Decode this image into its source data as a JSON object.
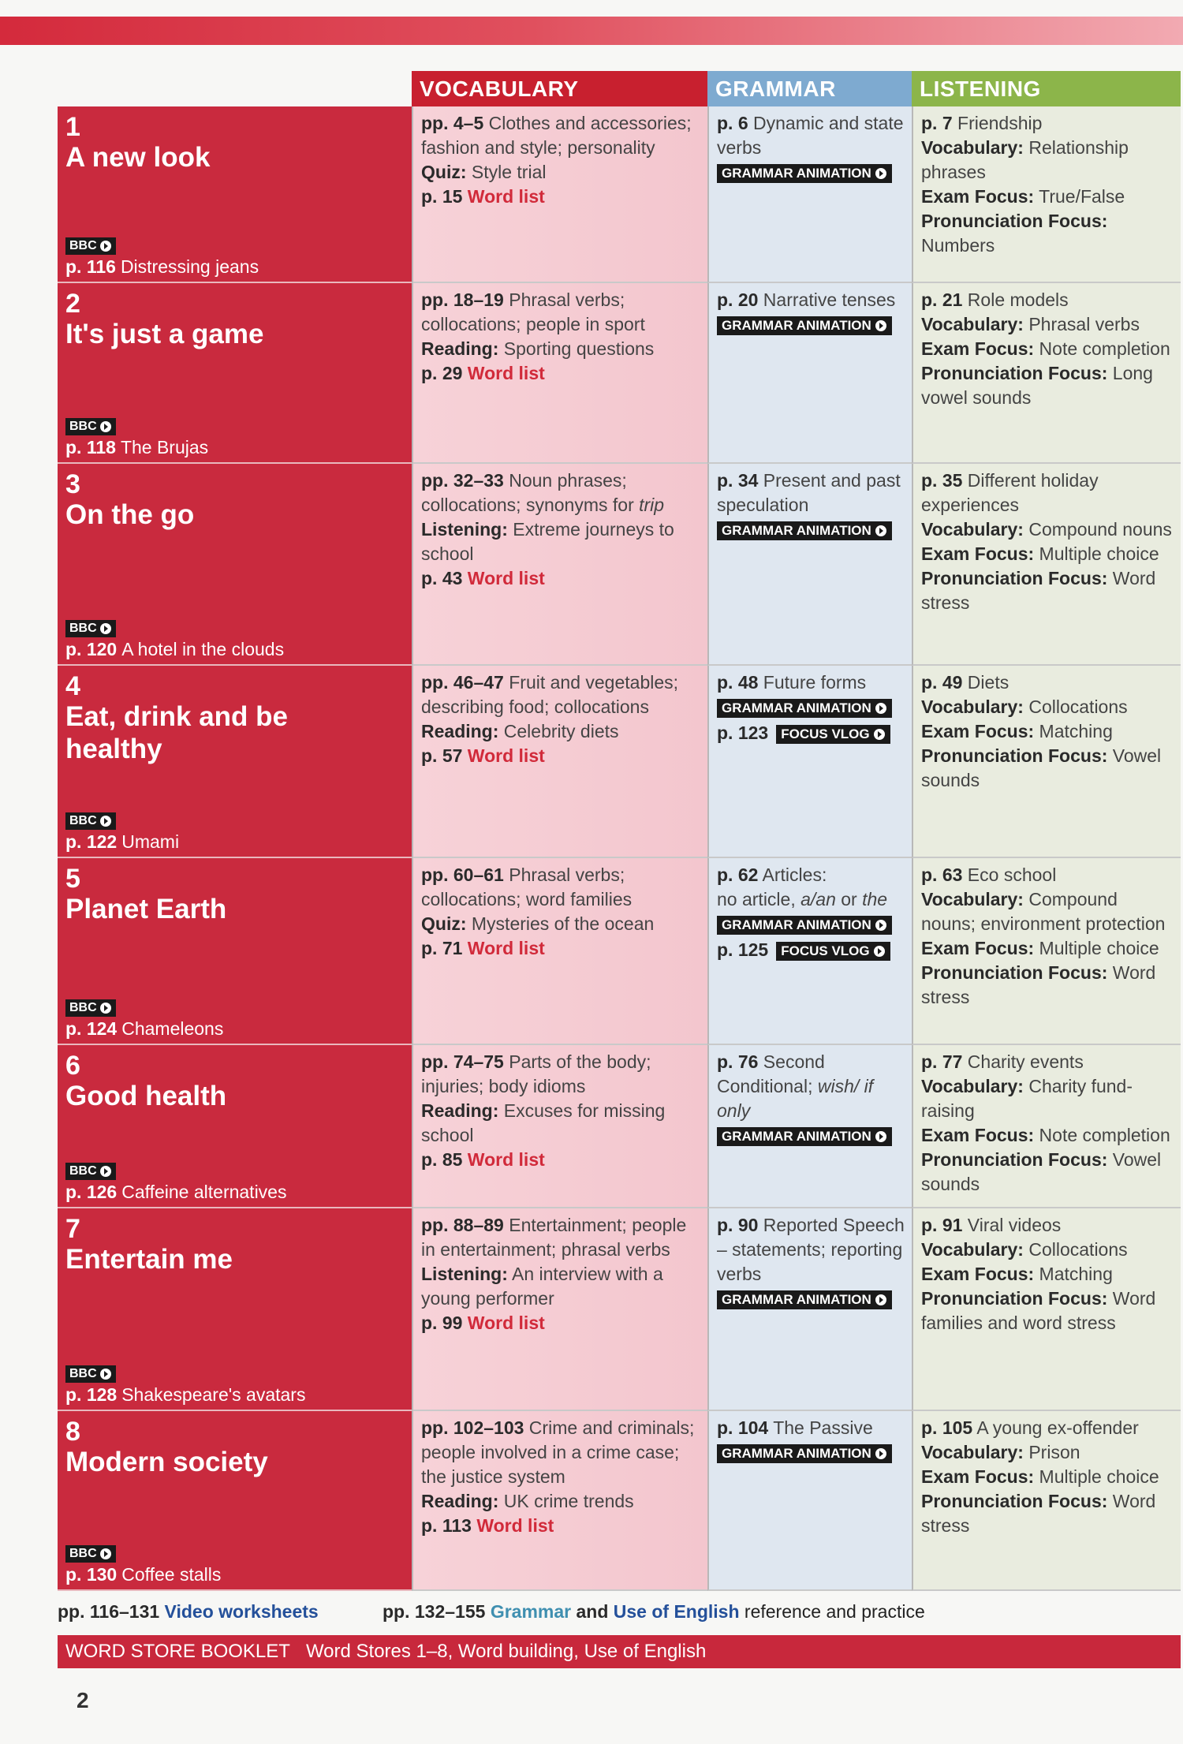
{
  "header": {
    "vocabulary": "VOCABULARY",
    "grammar": "GRAMMAR",
    "listening": "LISTENING"
  },
  "units": [
    {
      "number": "1",
      "title": "A new look",
      "video": {
        "badge": "BBC",
        "page": "p. 116",
        "title": "Distressing jeans"
      },
      "vocabulary": [
        [
          {
            "bold": "pp. 4–5"
          },
          {
            "text": " Clothes and accessories; fashion and style; personality"
          }
        ],
        [
          {
            "bold": "Quiz:"
          },
          {
            "text": " Style trial"
          }
        ],
        [
          {
            "bold": "p. 15"
          },
          {
            "red": " Word list"
          }
        ]
      ],
      "grammar": [
        [
          {
            "bold": "p. 6"
          },
          {
            "text": " Dynamic and state verbs"
          }
        ],
        [
          {
            "badge": "GRAMMAR ANIMATION"
          }
        ]
      ],
      "listening": [
        [
          {
            "bold": "p. 7"
          },
          {
            "text": " Friendship"
          }
        ],
        [
          {
            "bold": "Vocabulary:"
          },
          {
            "text": " Relationship phrases"
          }
        ],
        [
          {
            "bold": "Exam Focus:"
          },
          {
            "text": " True/False"
          }
        ],
        [
          {
            "bold": "Pronunciation Focus:"
          },
          {
            "text": " Numbers"
          }
        ]
      ]
    },
    {
      "number": "2",
      "title": "It's just a game",
      "video": {
        "badge": "BBC",
        "page": "p. 118",
        "title": "The Brujas"
      },
      "vocabulary": [
        [
          {
            "bold": "pp. 18–19"
          },
          {
            "text": " Phrasal verbs; collocations; people in sport"
          }
        ],
        [
          {
            "bold": "Reading:"
          },
          {
            "text": " Sporting questions"
          }
        ],
        [
          {
            "bold": "p. 29"
          },
          {
            "red": " Word list"
          }
        ]
      ],
      "grammar": [
        [
          {
            "bold": "p. 20"
          },
          {
            "text": " Narrative tenses"
          }
        ],
        [
          {
            "badge": "GRAMMAR ANIMATION"
          }
        ]
      ],
      "listening": [
        [
          {
            "bold": "p. 21"
          },
          {
            "text": " Role models"
          }
        ],
        [
          {
            "bold": "Vocabulary:"
          },
          {
            "text": " Phrasal verbs"
          }
        ],
        [
          {
            "bold": "Exam Focus:"
          },
          {
            "text": " Note completion"
          }
        ],
        [
          {
            "bold": "Pronunciation Focus:"
          },
          {
            "text": " Long vowel sounds"
          }
        ]
      ]
    },
    {
      "number": "3",
      "title": "On the go",
      "video": {
        "badge": "BBC",
        "page": "p. 120",
        "title": "A hotel in the clouds"
      },
      "vocabulary": [
        [
          {
            "bold": "pp. 32–33"
          },
          {
            "text": " Noun phrases; collocations; synonyms for "
          },
          {
            "italic": "trip"
          }
        ],
        [
          {
            "bold": "Listening:"
          },
          {
            "text": " Extreme journeys to school"
          }
        ],
        [
          {
            "bold": "p. 43"
          },
          {
            "red": " Word list"
          }
        ]
      ],
      "grammar": [
        [
          {
            "bold": "p. 34"
          },
          {
            "text": " Present and past speculation"
          }
        ],
        [
          {
            "badge": "GRAMMAR ANIMATION"
          }
        ]
      ],
      "listening": [
        [
          {
            "bold": "p. 35"
          },
          {
            "text": " Different holiday experiences"
          }
        ],
        [
          {
            "bold": "Vocabulary:"
          },
          {
            "text": " Compound nouns"
          }
        ],
        [
          {
            "bold": "Exam Focus:"
          },
          {
            "text": " Multiple choice"
          }
        ],
        [
          {
            "bold": "Pronunciation Focus:"
          },
          {
            "text": " Word stress"
          }
        ]
      ]
    },
    {
      "number": "4",
      "title": "Eat, drink and be healthy",
      "video": {
        "badge": "BBC",
        "page": "p. 122",
        "title": "Umami"
      },
      "vocabulary": [
        [
          {
            "bold": "pp. 46–47"
          },
          {
            "text": " Fruit and vegetables; describing food; collocations"
          }
        ],
        [
          {
            "bold": "Reading:"
          },
          {
            "text": " Celebrity diets"
          }
        ],
        [
          {
            "bold": "p. 57"
          },
          {
            "red": " Word list"
          }
        ]
      ],
      "grammar": [
        [
          {
            "bold": "p. 48"
          },
          {
            "text": " Future forms"
          }
        ],
        [
          {
            "badge": "GRAMMAR ANIMATION"
          }
        ],
        [
          {
            "bold": "p. 123"
          },
          {
            "badge": "FOCUS VLOG"
          }
        ]
      ],
      "listening": [
        [
          {
            "bold": "p. 49"
          },
          {
            "text": " Diets"
          }
        ],
        [
          {
            "bold": "Vocabulary:"
          },
          {
            "text": " Collocations"
          }
        ],
        [
          {
            "bold": "Exam Focus:"
          },
          {
            "text": " Matching"
          }
        ],
        [
          {
            "bold": "Pronunciation Focus:"
          },
          {
            "text": " Vowel sounds"
          }
        ]
      ]
    },
    {
      "number": "5",
      "title": "Planet Earth",
      "video": {
        "badge": "BBC",
        "page": "p. 124",
        "title": "Chameleons"
      },
      "vocabulary": [
        [
          {
            "bold": "pp. 60–61"
          },
          {
            "text": " Phrasal verbs; collocations; word families"
          }
        ],
        [
          {
            "bold": "Quiz:"
          },
          {
            "text": " Mysteries of the ocean"
          }
        ],
        [
          {
            "bold": "p. 71"
          },
          {
            "red": " Word list"
          }
        ]
      ],
      "grammar": [
        [
          {
            "bold": "p. 62"
          },
          {
            "text": " Articles:"
          }
        ],
        [
          {
            "text": "no article, "
          },
          {
            "italic": "a/an"
          },
          {
            "text": " or "
          },
          {
            "italic": "the"
          }
        ],
        [
          {
            "badge": "GRAMMAR ANIMATION"
          }
        ],
        [
          {
            "bold": "p. 125"
          },
          {
            "badge": "FOCUS VLOG"
          }
        ]
      ],
      "listening": [
        [
          {
            "bold": "p. 63"
          },
          {
            "text": " Eco school"
          }
        ],
        [
          {
            "bold": "Vocabulary:"
          },
          {
            "text": " Compound nouns; environment protection"
          }
        ],
        [
          {
            "bold": "Exam Focus:"
          },
          {
            "text": " Multiple choice"
          }
        ],
        [
          {
            "bold": "Pronunciation Focus:"
          },
          {
            "text": " Word stress"
          }
        ]
      ]
    },
    {
      "number": "6",
      "title": "Good health",
      "video": {
        "badge": "BBC",
        "page": "p. 126",
        "title": "Caffeine alternatives"
      },
      "vocabulary": [
        [
          {
            "bold": "pp. 74–75"
          },
          {
            "text": " Parts of the body; injuries; body idioms"
          }
        ],
        [
          {
            "bold": "Reading:"
          },
          {
            "text": " Excuses for missing school"
          }
        ],
        [
          {
            "bold": "p. 85"
          },
          {
            "red": " Word list"
          }
        ]
      ],
      "grammar": [
        [
          {
            "bold": "p. 76"
          },
          {
            "text": " Second Conditional; "
          },
          {
            "italic": "wish/ if only"
          }
        ],
        [
          {
            "badge": "GRAMMAR ANIMATION"
          }
        ]
      ],
      "listening": [
        [
          {
            "bold": "p. 77"
          },
          {
            "text": " Charity events"
          }
        ],
        [
          {
            "bold": "Vocabulary:"
          },
          {
            "text": " Charity fund-raising"
          }
        ],
        [
          {
            "bold": "Exam Focus:"
          },
          {
            "text": " Note completion"
          }
        ],
        [
          {
            "bold": "Pronunciation Focus:"
          },
          {
            "text": " Vowel sounds"
          }
        ]
      ]
    },
    {
      "number": "7",
      "title": "Entertain me",
      "video": {
        "badge": "BBC",
        "page": "p. 128",
        "title": "Shakespeare's avatars"
      },
      "vocabulary": [
        [
          {
            "bold": "pp. 88–89"
          },
          {
            "text": " Entertainment; people in entertainment; phrasal verbs"
          }
        ],
        [
          {
            "bold": "Listening:"
          },
          {
            "text": " An interview with a young performer"
          }
        ],
        [
          {
            "bold": "p. 99"
          },
          {
            "red": " Word list"
          }
        ]
      ],
      "grammar": [
        [
          {
            "bold": "p. 90"
          },
          {
            "text": " Reported Speech – statements; reporting verbs"
          }
        ],
        [
          {
            "badge": "GRAMMAR ANIMATION"
          }
        ]
      ],
      "listening": [
        [
          {
            "bold": "p. 91"
          },
          {
            "text": " Viral videos"
          }
        ],
        [
          {
            "bold": "Vocabulary:"
          },
          {
            "text": " Collocations"
          }
        ],
        [
          {
            "bold": "Exam Focus:"
          },
          {
            "text": " Matching"
          }
        ],
        [
          {
            "bold": "Pronunciation Focus:"
          },
          {
            "text": " Word families and word stress"
          }
        ]
      ]
    },
    {
      "number": "8",
      "title": "Modern society",
      "video": {
        "badge": "BBC",
        "page": "p. 130",
        "title": "Coffee stalls"
      },
      "vocabulary": [
        [
          {
            "bold": "pp. 102–103"
          },
          {
            "text": " Crime and criminals; people involved in a crime case; the justice system"
          }
        ],
        [
          {
            "bold": "Reading:"
          },
          {
            "text": " UK crime trends"
          }
        ],
        [
          {
            "bold": "p. 113"
          },
          {
            "red": " Word list"
          }
        ]
      ],
      "grammar": [
        [
          {
            "bold": "p. 104"
          },
          {
            "text": " The Passive"
          }
        ],
        [
          {
            "badge": "GRAMMAR ANIMATION"
          }
        ]
      ],
      "listening": [
        [
          {
            "bold": "p. 105"
          },
          {
            "text": " A young ex-offender"
          }
        ],
        [
          {
            "bold": "Vocabulary:"
          },
          {
            "text": " Prison"
          }
        ],
        [
          {
            "bold": "Exam Focus:"
          },
          {
            "text": " Multiple choice"
          }
        ],
        [
          {
            "bold": "Pronunciation Focus:"
          },
          {
            "text": " Word stress"
          }
        ]
      ]
    }
  ],
  "footer": {
    "video": [
      {
        "bold": "pp. 116–131 "
      },
      {
        "blue": "Video worksheets"
      }
    ],
    "reference": [
      {
        "bold": "pp. 132–155 "
      },
      {
        "teal": "Grammar"
      },
      {
        "bold": " and "
      },
      {
        "blue": "Use of English"
      },
      {
        "text": " reference and practice"
      }
    ],
    "word_store": {
      "label": "WORD STORE BOOKLET",
      "text": "Word Stores 1–8, Word building, Use of English"
    },
    "page_number": "2"
  }
}
